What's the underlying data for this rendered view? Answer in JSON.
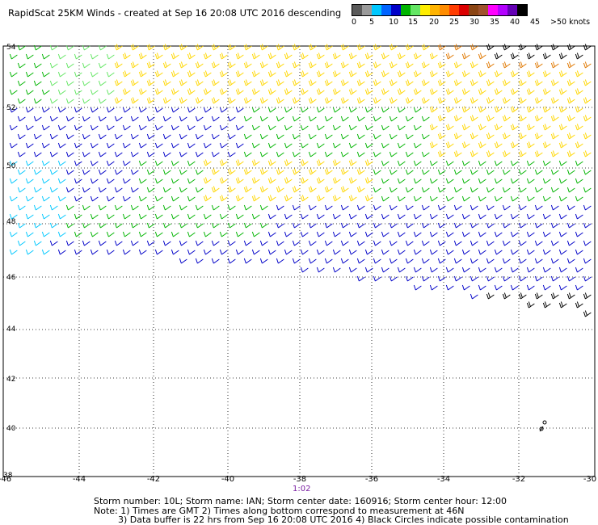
{
  "title": "RapidScat 25KM Winds - created at Sep 16 20:08 UTC 2016 descending",
  "legend": {
    "labels": [
      "0",
      "5",
      "10",
      "15",
      "20",
      "25",
      "30",
      "35",
      "40",
      "45",
      ">50 knots"
    ],
    "colors": [
      "#5a5a5a",
      "#9a9a9a",
      "#00c8ff",
      "#0064ff",
      "#0000c8",
      "#00b400",
      "#64e664",
      "#ffee00",
      "#ffb400",
      "#ff8c00",
      "#ff3c00",
      "#dc0000",
      "#8b4513",
      "#a0522d",
      "#ff00ff",
      "#b400ff",
      "#6400b4",
      "#000000"
    ]
  },
  "axes": {
    "lon_ticks": [
      "-46",
      "-44",
      "-42",
      "-40",
      "-38",
      "-36",
      "-34",
      "-32",
      "-30"
    ],
    "lat_ticks": [
      "54",
      "52",
      "50",
      "48",
      "46",
      "44",
      "42",
      "40",
      "38"
    ]
  },
  "time_label": "1:02",
  "footer": {
    "line1": "Storm number: 10L;  Storm name: IAN;  Storm center date: 160916;  Storm center hour: 12:00",
    "line2": "Note: 1) Times are GMT  2) Times along bottom correspond to measurement at 46N",
    "line3": "3) Data buffer is 22 hrs from Sep 16 20:08 UTC 2016   4) Black Circles indicate possible contamination"
  },
  "barb_colors": {
    "cyan": "#00c8ff",
    "blue": "#0000c8",
    "green": "#00b400",
    "lightgreen": "#64e664",
    "yellow": "#ffd700",
    "orange": "#e07800",
    "black": "#000000"
  }
}
